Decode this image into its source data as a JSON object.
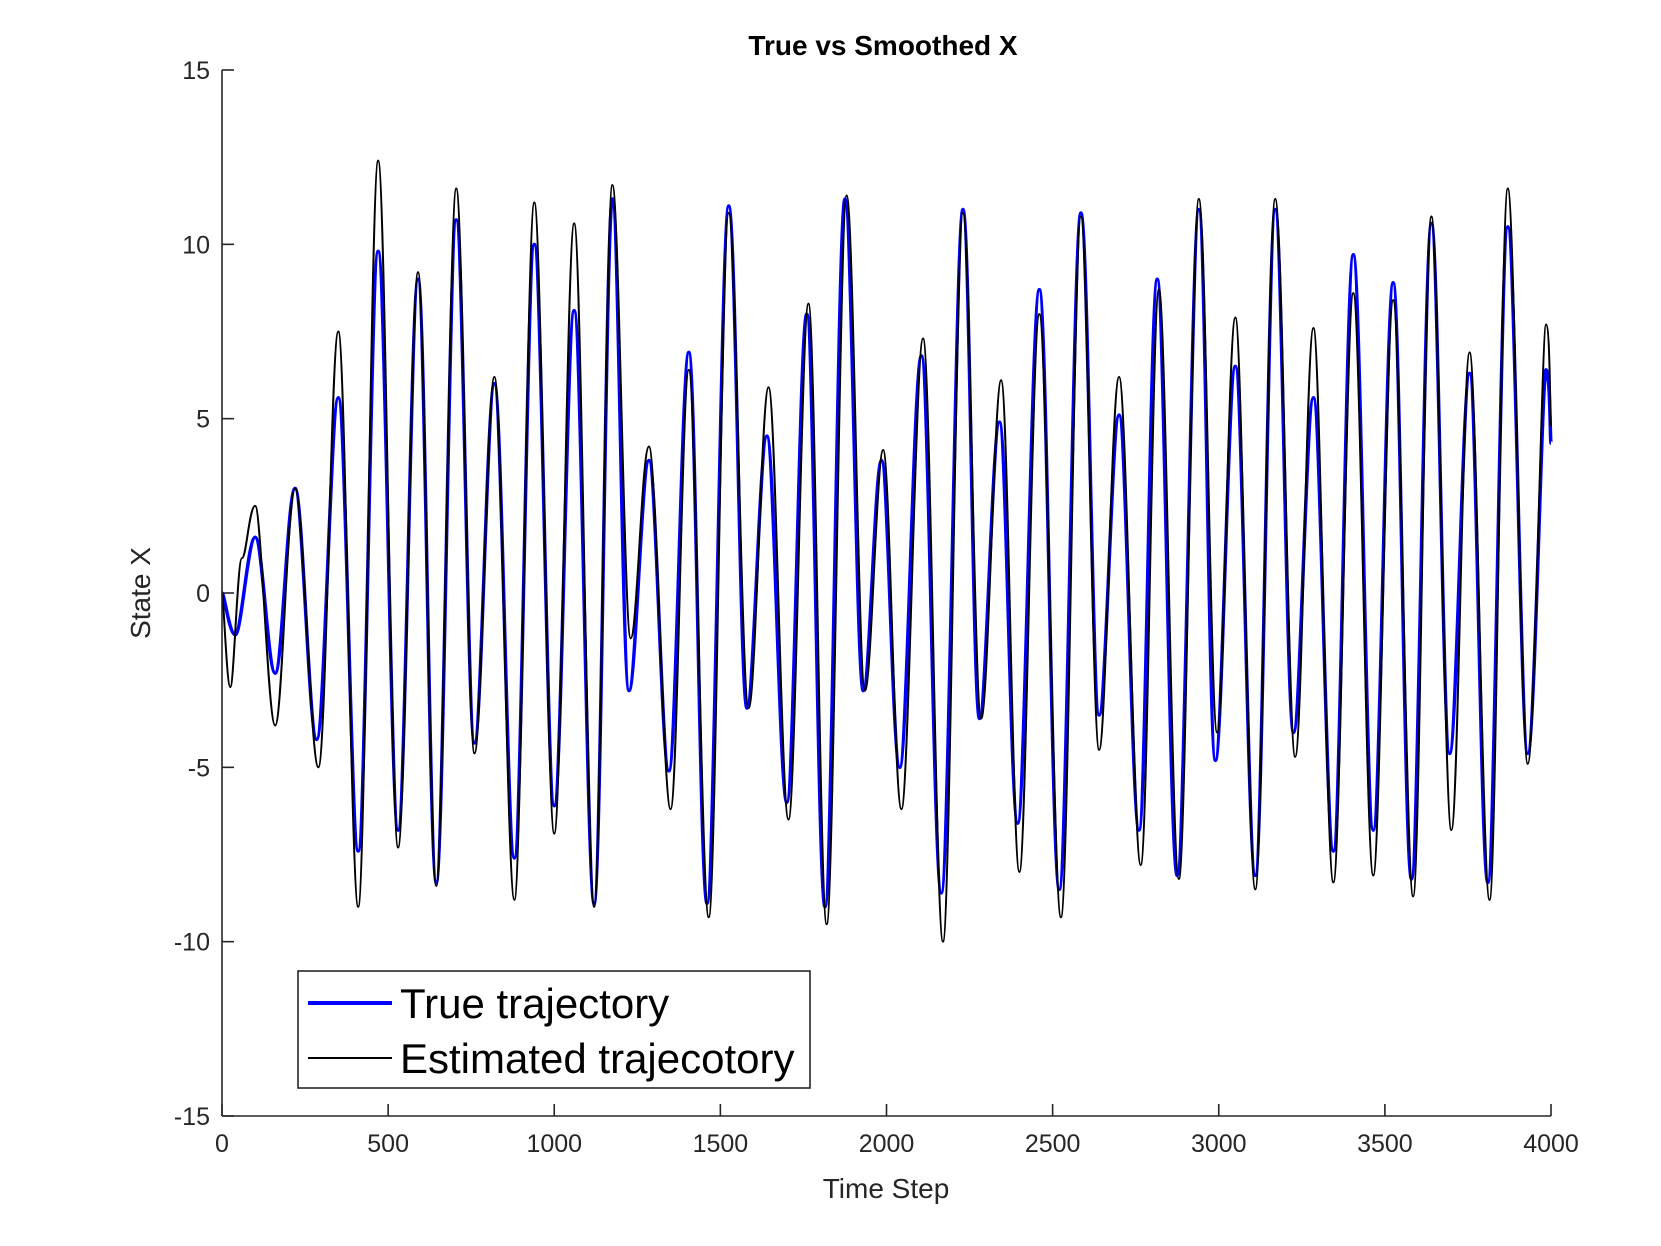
{
  "chart_data": {
    "type": "line",
    "title": "True vs Smoothed X",
    "xlabel": "Time Step",
    "ylabel": "State X",
    "xlim": [
      0,
      4000
    ],
    "ylim": [
      -15,
      15
    ],
    "xticks": [
      0,
      500,
      1000,
      1500,
      2000,
      2500,
      3000,
      3500,
      4000
    ],
    "yticks": [
      -15,
      -10,
      -5,
      0,
      5,
      10,
      15
    ],
    "xtick_labels": [
      "0",
      "500",
      "1000",
      "1500",
      "2000",
      "2500",
      "3000",
      "3500",
      "4000"
    ],
    "ytick_labels": [
      "-15",
      "-10",
      "-5",
      "0",
      "5",
      "10",
      "15"
    ],
    "grid": false,
    "legend_position": "bottom-left",
    "series": [
      {
        "name": "True trajectory",
        "color": "#0000ff",
        "x": [
          0,
          40,
          100,
          160,
          220,
          285,
          350,
          410,
          470,
          530,
          590,
          645,
          705,
          760,
          820,
          880,
          940,
          1000,
          1060,
          1120,
          1175,
          1225,
          1285,
          1345,
          1405,
          1460,
          1525,
          1580,
          1640,
          1700,
          1760,
          1815,
          1875,
          1930,
          1985,
          2040,
          2105,
          2165,
          2230,
          2280,
          2340,
          2395,
          2460,
          2520,
          2585,
          2640,
          2700,
          2760,
          2815,
          2875,
          2940,
          2990,
          3050,
          3110,
          3170,
          3225,
          3285,
          3345,
          3405,
          3465,
          3525,
          3580,
          3640,
          3695,
          3755,
          3810,
          3870,
          3930,
          3985,
          4000
        ],
        "y": [
          0,
          -1.2,
          1.6,
          -2.3,
          3.0,
          -4.2,
          5.6,
          -7.4,
          9.8,
          -6.8,
          9.0,
          -8.3,
          10.7,
          -4.3,
          6.0,
          -7.6,
          10.0,
          -6.1,
          8.1,
          -8.9,
          11.3,
          -2.8,
          3.8,
          -5.1,
          6.9,
          -8.9,
          11.1,
          -3.3,
          4.5,
          -6.0,
          8.0,
          -9.0,
          11.3,
          -2.8,
          3.8,
          -5.0,
          6.8,
          -8.6,
          11.0,
          -3.6,
          4.9,
          -6.6,
          8.7,
          -8.5,
          10.9,
          -3.5,
          5.1,
          -6.8,
          9.0,
          -8.1,
          11.0,
          -4.8,
          6.5,
          -8.1,
          11.0,
          -4.0,
          5.6,
          -7.4,
          9.7,
          -6.8,
          8.9,
          -8.2,
          10.6,
          -4.6,
          6.3,
          -8.3,
          10.5,
          -4.6,
          6.4,
          4.3
        ]
      },
      {
        "name": "Estimated trajecotory",
        "color": "#000000",
        "x": [
          0,
          25,
          60,
          100,
          160,
          220,
          290,
          350,
          410,
          470,
          530,
          590,
          645,
          705,
          760,
          820,
          880,
          940,
          1000,
          1060,
          1120,
          1175,
          1230,
          1285,
          1350,
          1405,
          1465,
          1525,
          1585,
          1645,
          1705,
          1765,
          1820,
          1880,
          1935,
          1990,
          2045,
          2110,
          2170,
          2230,
          2285,
          2345,
          2400,
          2460,
          2525,
          2585,
          2640,
          2700,
          2765,
          2820,
          2880,
          2940,
          2995,
          3050,
          3110,
          3170,
          3230,
          3285,
          3345,
          3405,
          3465,
          3525,
          3585,
          3640,
          3700,
          3755,
          3815,
          3870,
          3930,
          3985,
          4000
        ],
        "y": [
          0,
          -2.7,
          1.0,
          2.5,
          -3.8,
          3.0,
          -5.0,
          7.5,
          -9.0,
          12.4,
          -7.3,
          9.2,
          -8.4,
          11.6,
          -4.6,
          6.2,
          -8.8,
          11.2,
          -6.9,
          10.6,
          -9.0,
          11.7,
          -1.3,
          4.2,
          -6.2,
          6.4,
          -9.3,
          10.9,
          -3.3,
          5.9,
          -6.5,
          8.3,
          -9.5,
          11.4,
          -2.8,
          4.1,
          -6.2,
          7.3,
          -10.0,
          10.9,
          -3.6,
          6.1,
          -8.0,
          8.0,
          -9.3,
          10.8,
          -4.5,
          6.2,
          -7.8,
          8.7,
          -8.2,
          11.3,
          -4.0,
          7.9,
          -8.5,
          11.3,
          -4.7,
          7.6,
          -8.3,
          8.6,
          -8.1,
          8.4,
          -8.7,
          10.8,
          -6.8,
          6.9,
          -8.8,
          11.6,
          -4.9,
          7.7,
          4.8
        ]
      }
    ]
  }
}
